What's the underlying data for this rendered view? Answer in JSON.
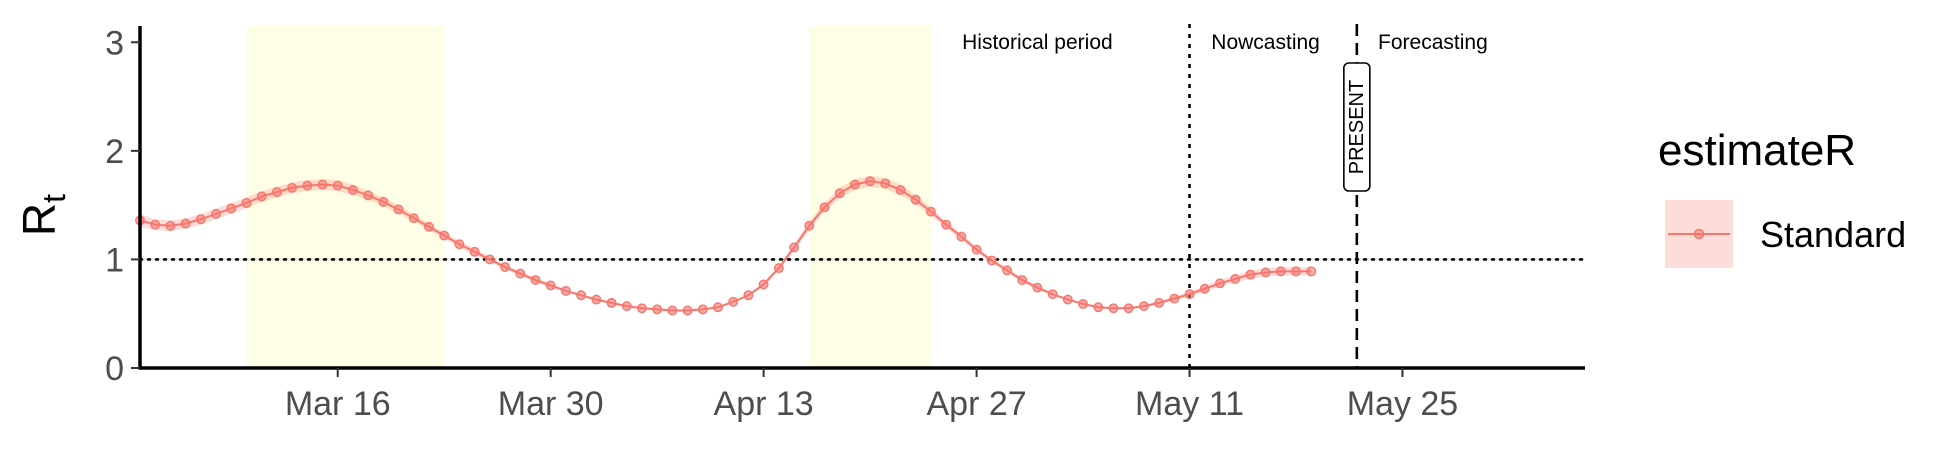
{
  "chart_data": {
    "type": "line",
    "ylabel_main": "R",
    "ylabel_sub": "t",
    "ylim": [
      0,
      3.15
    ],
    "xlim": [
      "2020-03-03",
      "2020-06-06"
    ],
    "y_ticks": [
      0,
      1,
      2,
      3
    ],
    "x_ticks": [
      {
        "date": "2020-03-16",
        "label": "Mar 16"
      },
      {
        "date": "2020-03-30",
        "label": "Mar 30"
      },
      {
        "date": "2020-04-13",
        "label": "Apr 13"
      },
      {
        "date": "2020-04-27",
        "label": "Apr 27"
      },
      {
        "date": "2020-05-11",
        "label": "May 11"
      },
      {
        "date": "2020-05-25",
        "label": "May 25"
      }
    ],
    "shaded_periods": [
      {
        "start": "2020-03-10",
        "end": "2020-03-23",
        "color": "#FEFEE6"
      },
      {
        "start": "2020-04-16",
        "end": "2020-04-24",
        "color": "#FEFEE6"
      }
    ],
    "reference_line": {
      "y": 1,
      "style": "dotted"
    },
    "vlines": [
      {
        "date": "2020-05-11",
        "style": "dotted"
      },
      {
        "date": "2020-05-22",
        "style": "dashed"
      }
    ],
    "region_labels": [
      {
        "text": "Historical period",
        "anchor": "2020-05-01"
      },
      {
        "text": "Nowcasting",
        "anchor": "2020-05-16"
      },
      {
        "text": "Forecasting",
        "anchor": "2020-05-27"
      }
    ],
    "present_label": {
      "text": "PRESENT",
      "date": "2020-05-22"
    },
    "legend": {
      "title": "estimateR",
      "position": "right"
    },
    "band_color": "#F8766D",
    "series": [
      {
        "name": "Standard",
        "color": "#F8766D",
        "start": "2020-03-03",
        "values": [
          1.36,
          1.32,
          1.31,
          1.33,
          1.37,
          1.42,
          1.47,
          1.52,
          1.58,
          1.62,
          1.66,
          1.68,
          1.69,
          1.68,
          1.64,
          1.59,
          1.53,
          1.46,
          1.38,
          1.3,
          1.22,
          1.14,
          1.07,
          1.0,
          0.93,
          0.87,
          0.81,
          0.76,
          0.71,
          0.67,
          0.63,
          0.6,
          0.57,
          0.55,
          0.54,
          0.53,
          0.53,
          0.54,
          0.56,
          0.61,
          0.67,
          0.77,
          0.92,
          1.11,
          1.31,
          1.48,
          1.61,
          1.69,
          1.72,
          1.7,
          1.64,
          1.55,
          1.44,
          1.32,
          1.21,
          1.09,
          0.99,
          0.9,
          0.81,
          0.74,
          0.68,
          0.63,
          0.59,
          0.56,
          0.55,
          0.55,
          0.57,
          0.6,
          0.64,
          0.68,
          0.73,
          0.78,
          0.82,
          0.86,
          0.88,
          0.89,
          0.89,
          0.89
        ],
        "lower": [
          1.3,
          1.27,
          1.26,
          1.28,
          1.32,
          1.37,
          1.42,
          1.47,
          1.53,
          1.57,
          1.61,
          1.63,
          1.64,
          1.63,
          1.59,
          1.55,
          1.49,
          1.42,
          1.35,
          1.27,
          1.19,
          1.11,
          1.04,
          0.98,
          0.91,
          0.85,
          0.79,
          0.74,
          0.7,
          0.66,
          0.62,
          0.59,
          0.56,
          0.54,
          0.53,
          0.52,
          0.52,
          0.53,
          0.55,
          0.6,
          0.66,
          0.75,
          0.9,
          1.08,
          1.27,
          1.44,
          1.56,
          1.64,
          1.67,
          1.65,
          1.59,
          1.51,
          1.4,
          1.29,
          1.18,
          1.07,
          0.97,
          0.88,
          0.79,
          0.72,
          0.67,
          0.62,
          0.58,
          0.55,
          0.54,
          0.54,
          0.56,
          0.59,
          0.62,
          0.66,
          0.7,
          0.75,
          0.79,
          0.82,
          0.84,
          0.85,
          0.85,
          0.85
        ],
        "upper": [
          1.42,
          1.37,
          1.36,
          1.38,
          1.42,
          1.47,
          1.52,
          1.57,
          1.63,
          1.67,
          1.71,
          1.73,
          1.74,
          1.73,
          1.69,
          1.63,
          1.57,
          1.5,
          1.41,
          1.33,
          1.25,
          1.17,
          1.1,
          1.02,
          0.95,
          0.89,
          0.83,
          0.78,
          0.72,
          0.68,
          0.64,
          0.61,
          0.58,
          0.56,
          0.55,
          0.54,
          0.54,
          0.55,
          0.57,
          0.62,
          0.68,
          0.79,
          0.94,
          1.14,
          1.35,
          1.52,
          1.66,
          1.74,
          1.77,
          1.75,
          1.69,
          1.59,
          1.48,
          1.35,
          1.24,
          1.11,
          1.01,
          0.92,
          0.83,
          0.76,
          0.69,
          0.64,
          0.6,
          0.57,
          0.56,
          0.56,
          0.58,
          0.61,
          0.66,
          0.7,
          0.76,
          0.81,
          0.85,
          0.9,
          0.92,
          0.93,
          0.93,
          0.93
        ]
      }
    ]
  }
}
